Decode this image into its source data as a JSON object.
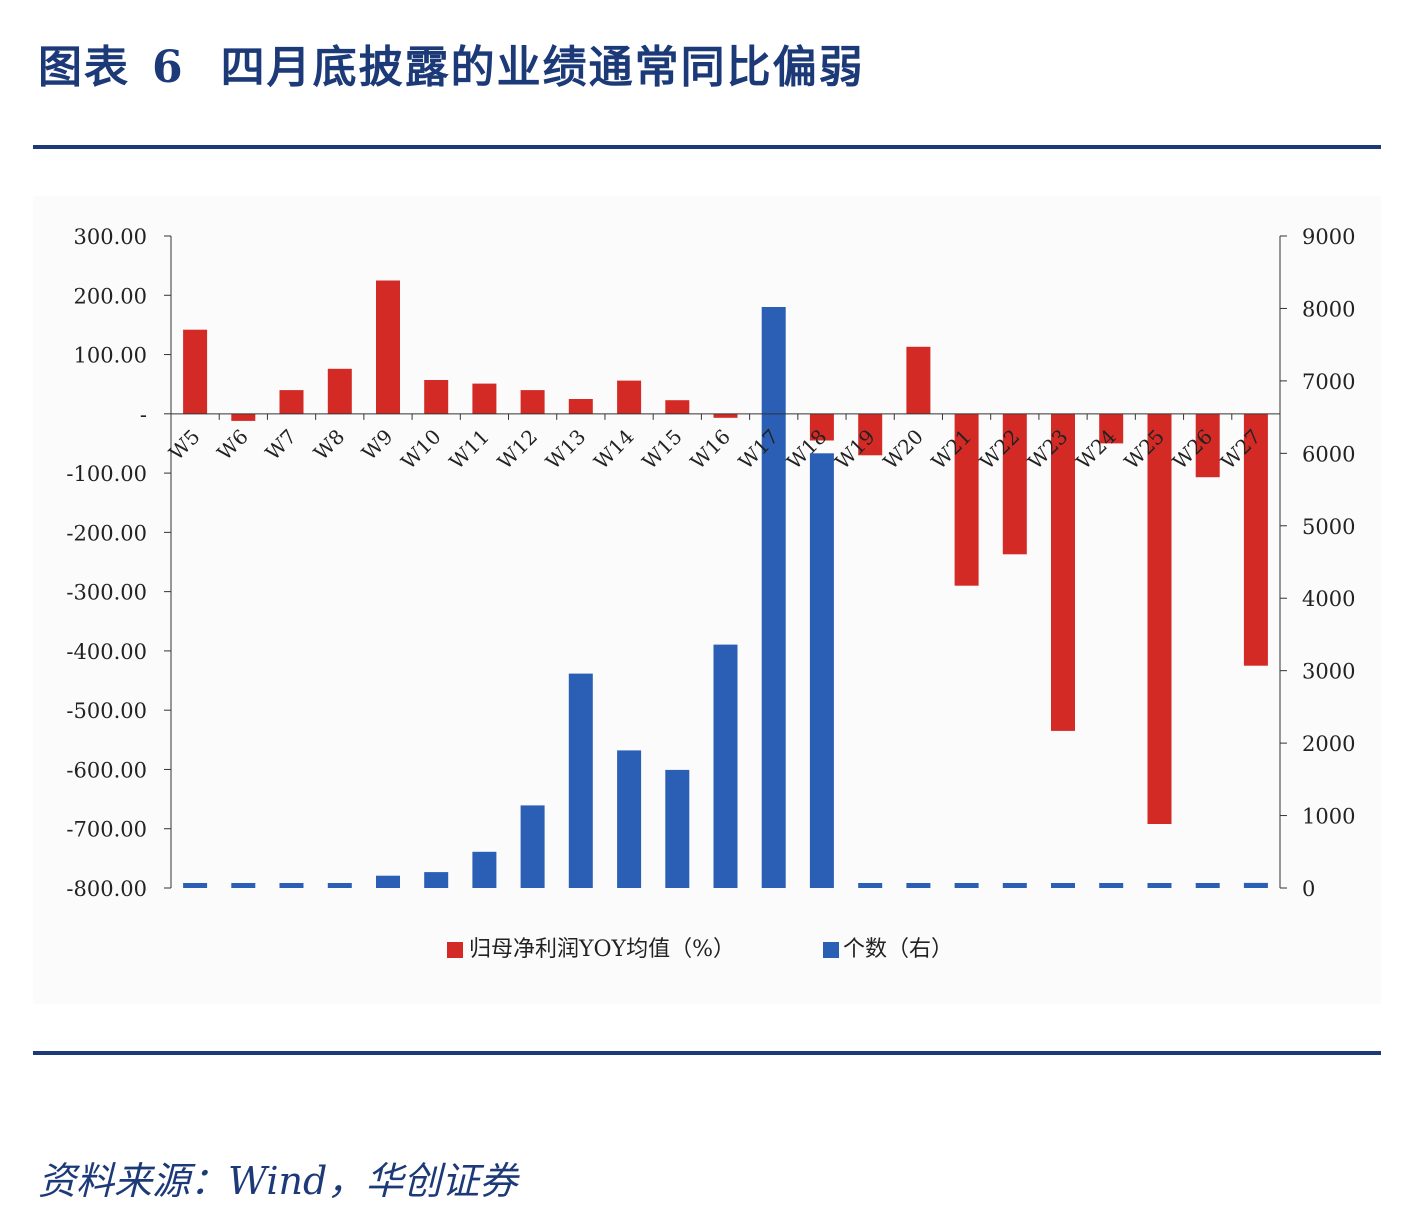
{
  "header": {
    "label": "图表",
    "number": "6",
    "title": "四月底披露的业绩通常同比偏弱"
  },
  "source": "资料来源：Wind，华创证券",
  "colors": {
    "red_series": "#d42a26",
    "blue_series": "#2a5fb5",
    "rule": "#1d3a78",
    "title_text": "#1d3a78"
  },
  "chart_data": {
    "type": "bar",
    "title": "",
    "grid": false,
    "legend_position": "bottom",
    "categories": [
      "W5",
      "W6",
      "W7",
      "W8",
      "W9",
      "W10",
      "W11",
      "W12",
      "W13",
      "W14",
      "W15",
      "W16",
      "W17",
      "W18",
      "W19",
      "W20",
      "W21",
      "W22",
      "W23",
      "W24",
      "W25",
      "W26",
      "W27"
    ],
    "series": [
      {
        "name": "归母净利润YOY均值（%）",
        "axis": "left",
        "color": "#d42a26",
        "values": [
          142,
          -12,
          40,
          76,
          225,
          57,
          51,
          40,
          25,
          56,
          23,
          -5,
          0,
          -45,
          -70,
          113,
          -290,
          -237,
          -535,
          -50,
          -692,
          -107,
          -425
        ]
      },
      {
        "name": "个数（右）",
        "axis": "right",
        "color": "#2a5fb5",
        "values": [
          50,
          50,
          50,
          60,
          170,
          220,
          500,
          1140,
          2960,
          1900,
          1630,
          3360,
          8020,
          6000,
          40,
          40,
          50,
          60,
          40,
          40,
          40,
          60,
          70
        ]
      }
    ],
    "left_axis": {
      "ylim": [
        -800,
        300
      ],
      "ticks": [
        300,
        200,
        100,
        0,
        -100,
        -200,
        -300,
        -400,
        -500,
        -600,
        -700,
        -800
      ],
      "tick_labels": [
        "300.00",
        "200.00",
        "100.00",
        "-",
        "-100.00",
        "-200.00",
        "-300.00",
        "-400.00",
        "-500.00",
        "-600.00",
        "-700.00",
        "-800.00"
      ]
    },
    "right_axis": {
      "ylim": [
        0,
        9000
      ],
      "ticks": [
        9000,
        8000,
        7000,
        6000,
        5000,
        4000,
        3000,
        2000,
        1000,
        0
      ],
      "tick_labels": [
        "9000",
        "8000",
        "7000",
        "6000",
        "5000",
        "4000",
        "3000",
        "2000",
        "1000",
        "0"
      ]
    },
    "legend": [
      "归母净利润YOY均值（%）",
      "个数（右）"
    ]
  }
}
